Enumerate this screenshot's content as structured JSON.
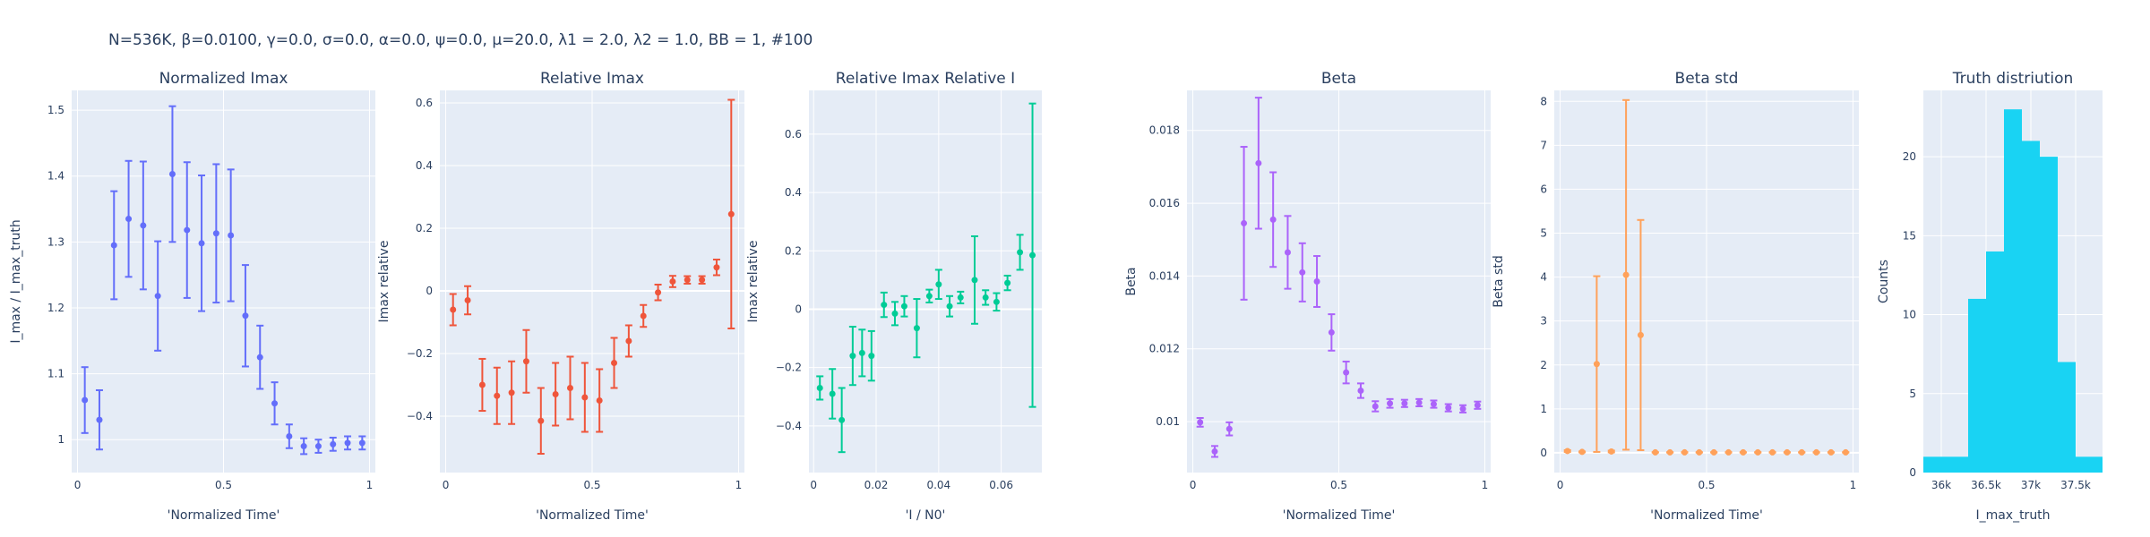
{
  "figure_title": "N=536K, β=0.0100, γ=0.0, σ=0.0,  α=0.0, ψ=0.0, μ=20.0, λ1 = 2.0, λ2 = 1.0, BB = 1, #100",
  "chart_data": [
    {
      "type": "scatter",
      "title": "Normalized Imax",
      "xlabel": "'Normalized Time'",
      "ylabel": "I_max / I_max_truth",
      "color": "#636efa",
      "xlim": [
        -0.02,
        1.02
      ],
      "ylim": [
        0.95,
        1.53
      ],
      "xticks": [
        {
          "v": 0,
          "label": "0"
        },
        {
          "v": 0.5,
          "label": "0.5"
        },
        {
          "v": 1,
          "label": "1"
        }
      ],
      "yticks": [
        {
          "v": 1.0,
          "label": "1"
        },
        {
          "v": 1.1,
          "label": "1.1"
        },
        {
          "v": 1.2,
          "label": "1.2"
        },
        {
          "v": 1.3,
          "label": "1.3"
        },
        {
          "v": 1.4,
          "label": "1.4"
        },
        {
          "v": 1.5,
          "label": "1.5"
        }
      ],
      "x": [
        0.025,
        0.075,
        0.125,
        0.175,
        0.225,
        0.275,
        0.325,
        0.375,
        0.425,
        0.475,
        0.525,
        0.575,
        0.625,
        0.675,
        0.725,
        0.775,
        0.825,
        0.875,
        0.925,
        0.975
      ],
      "y": [
        1.06,
        1.03,
        1.295,
        1.335,
        1.325,
        1.218,
        1.403,
        1.318,
        1.298,
        1.313,
        1.31,
        1.188,
        1.125,
        1.055,
        1.005,
        0.99,
        0.99,
        0.993,
        0.995,
        0.995
      ],
      "err": [
        0.05,
        0.045,
        0.082,
        0.088,
        0.097,
        0.083,
        0.103,
        0.103,
        0.103,
        0.105,
        0.1,
        0.077,
        0.048,
        0.032,
        0.018,
        0.012,
        0.01,
        0.01,
        0.01,
        0.01
      ]
    },
    {
      "type": "scatter",
      "title": "Relative Imax",
      "xlabel": "'Normalized Time'",
      "ylabel": "Imax relative",
      "color": "#ef553b",
      "xlim": [
        -0.02,
        1.02
      ],
      "ylim": [
        -0.58,
        0.64
      ],
      "xticks": [
        {
          "v": 0,
          "label": "0"
        },
        {
          "v": 0.5,
          "label": "0.5"
        },
        {
          "v": 1,
          "label": "1"
        }
      ],
      "yticks": [
        {
          "v": -0.4,
          "label": "−0.4"
        },
        {
          "v": -0.2,
          "label": "−0.2"
        },
        {
          "v": 0,
          "label": "0"
        },
        {
          "v": 0.2,
          "label": "0.2"
        },
        {
          "v": 0.4,
          "label": "0.4"
        },
        {
          "v": 0.6,
          "label": "0.6"
        }
      ],
      "zeroline": true,
      "x": [
        0.025,
        0.075,
        0.125,
        0.175,
        0.225,
        0.275,
        0.325,
        0.375,
        0.425,
        0.475,
        0.525,
        0.575,
        0.625,
        0.675,
        0.725,
        0.775,
        0.825,
        0.875,
        0.925,
        0.975
      ],
      "y": [
        -0.06,
        -0.03,
        -0.3,
        -0.335,
        -0.325,
        -0.225,
        -0.415,
        -0.33,
        -0.31,
        -0.34,
        -0.35,
        -0.23,
        -0.16,
        -0.08,
        -0.005,
        0.03,
        0.035,
        0.035,
        0.075,
        0.245
      ],
      "err": [
        0.05,
        0.045,
        0.083,
        0.09,
        0.1,
        0.1,
        0.105,
        0.1,
        0.1,
        0.11,
        0.1,
        0.08,
        0.05,
        0.035,
        0.025,
        0.018,
        0.012,
        0.012,
        0.025,
        0.365
      ]
    },
    {
      "type": "scatter",
      "title": "Relative Imax Relative I",
      "xlabel": "'I / N0'",
      "ylabel": "Imax relative",
      "color": "#00cc96",
      "xlim": [
        -0.0015,
        0.073
      ],
      "ylim": [
        -0.56,
        0.75
      ],
      "xticks": [
        {
          "v": 0,
          "label": "0"
        },
        {
          "v": 0.02,
          "label": "0.02"
        },
        {
          "v": 0.04,
          "label": "0.04"
        },
        {
          "v": 0.06,
          "label": "0.06"
        }
      ],
      "yticks": [
        {
          "v": -0.4,
          "label": "−0.4"
        },
        {
          "v": -0.2,
          "label": "−0.2"
        },
        {
          "v": 0,
          "label": "0"
        },
        {
          "v": 0.2,
          "label": "0.2"
        },
        {
          "v": 0.4,
          "label": "0.4"
        },
        {
          "v": 0.6,
          "label": "0.6"
        }
      ],
      "zeroline": true,
      "x": [
        0.002,
        0.006,
        0.009,
        0.0125,
        0.0155,
        0.0185,
        0.0225,
        0.026,
        0.029,
        0.033,
        0.037,
        0.04,
        0.0435,
        0.047,
        0.0515,
        0.055,
        0.0585,
        0.062,
        0.066,
        0.07
      ],
      "y": [
        -0.27,
        -0.29,
        -0.38,
        -0.16,
        -0.15,
        -0.16,
        0.015,
        -0.015,
        0.01,
        -0.065,
        0.045,
        0.085,
        0.01,
        0.04,
        0.1,
        0.04,
        0.025,
        0.09,
        0.195,
        0.185
      ],
      "err": [
        0.04,
        0.085,
        0.11,
        0.1,
        0.08,
        0.085,
        0.042,
        0.04,
        0.035,
        0.1,
        0.022,
        0.05,
        0.035,
        0.02,
        0.15,
        0.025,
        0.03,
        0.025,
        0.06,
        0.52
      ]
    },
    {
      "type": "scatter",
      "title": "Beta",
      "xlabel": "'Normalized Time'",
      "ylabel": "Beta",
      "color": "#ab63fa",
      "xlim": [
        -0.02,
        1.02
      ],
      "ylim": [
        0.0086,
        0.0191
      ],
      "xticks": [
        {
          "v": 0,
          "label": "0"
        },
        {
          "v": 0.5,
          "label": "0.5"
        },
        {
          "v": 1,
          "label": "1"
        }
      ],
      "yticks": [
        {
          "v": 0.01,
          "label": "0.01"
        },
        {
          "v": 0.012,
          "label": "0.012"
        },
        {
          "v": 0.014,
          "label": "0.014"
        },
        {
          "v": 0.016,
          "label": "0.016"
        },
        {
          "v": 0.018,
          "label": "0.018"
        }
      ],
      "x": [
        0.025,
        0.075,
        0.125,
        0.175,
        0.225,
        0.275,
        0.325,
        0.375,
        0.425,
        0.475,
        0.525,
        0.575,
        0.625,
        0.675,
        0.725,
        0.775,
        0.825,
        0.875,
        0.925,
        0.975
      ],
      "y": [
        0.00998,
        0.00918,
        0.0098,
        0.01545,
        0.0171,
        0.01555,
        0.01465,
        0.0141,
        0.01385,
        0.01245,
        0.01135,
        0.01085,
        0.01042,
        0.0105,
        0.0105,
        0.01052,
        0.01048,
        0.01038,
        0.01035,
        0.01045
      ],
      "err": [
        0.00012,
        0.00015,
        0.00018,
        0.0021,
        0.0018,
        0.0013,
        0.001,
        0.0008,
        0.0007,
        0.0005,
        0.0003,
        0.0002,
        0.00014,
        0.00012,
        0.0001,
        0.0001,
        0.0001,
        0.0001,
        0.0001,
        0.0001
      ]
    },
    {
      "type": "scatter",
      "title": "Beta std",
      "xlabel": "'Normalized Time'",
      "ylabel": "Beta std",
      "color": "#ffa15a",
      "xlim": [
        -0.02,
        1.02
      ],
      "ylim": [
        -0.45,
        8.25
      ],
      "xticks": [
        {
          "v": 0,
          "label": "0"
        },
        {
          "v": 0.5,
          "label": "0.5"
        },
        {
          "v": 1,
          "label": "1"
        }
      ],
      "yticks": [
        {
          "v": 0,
          "label": "0"
        },
        {
          "v": 1,
          "label": "1"
        },
        {
          "v": 2,
          "label": "2"
        },
        {
          "v": 3,
          "label": "3"
        },
        {
          "v": 4,
          "label": "4"
        },
        {
          "v": 5,
          "label": "5"
        },
        {
          "v": 6,
          "label": "6"
        },
        {
          "v": 7,
          "label": "7"
        },
        {
          "v": 8,
          "label": "8"
        }
      ],
      "zeroline": true,
      "x": [
        0.025,
        0.075,
        0.125,
        0.175,
        0.225,
        0.275,
        0.325,
        0.375,
        0.425,
        0.475,
        0.525,
        0.575,
        0.625,
        0.675,
        0.725,
        0.775,
        0.825,
        0.875,
        0.925,
        0.975
      ],
      "y": [
        0.04,
        0.02,
        2.02,
        0.03,
        4.05,
        2.68,
        0.01,
        0.01,
        0.01,
        0.01,
        0.01,
        0.01,
        0.01,
        0.01,
        0.01,
        0.01,
        0.01,
        0.01,
        0.01,
        0.01
      ],
      "err": [
        0.02,
        0.01,
        2.0,
        0.02,
        3.98,
        2.62,
        0.005,
        0.005,
        0.005,
        0.005,
        0.005,
        0.005,
        0.005,
        0.005,
        0.005,
        0.005,
        0.005,
        0.005,
        0.005,
        0.005
      ]
    },
    {
      "type": "bar",
      "title": "Truth distriution",
      "xlabel": "I_max_truth",
      "ylabel": "Counts",
      "color": "#19d3f3",
      "xlim": [
        35800,
        37800
      ],
      "ylim": [
        0,
        24.2
      ],
      "xticks": [
        {
          "v": 36000,
          "label": "36k"
        },
        {
          "v": 36500,
          "label": "36.5k"
        },
        {
          "v": 37000,
          "label": "37k"
        },
        {
          "v": 37500,
          "label": "37.5k"
        }
      ],
      "yticks": [
        {
          "v": 0,
          "label": "0"
        },
        {
          "v": 5,
          "label": "5"
        },
        {
          "v": 10,
          "label": "10"
        },
        {
          "v": 15,
          "label": "15"
        },
        {
          "v": 20,
          "label": "20"
        }
      ],
      "bins": [
        [
          35800,
          36150
        ],
        [
          36150,
          36300
        ],
        [
          36300,
          36500
        ],
        [
          36500,
          36700
        ],
        [
          36700,
          36900
        ],
        [
          36900,
          37100
        ],
        [
          37100,
          37300
        ],
        [
          37300,
          37500
        ],
        [
          37500,
          37800
        ]
      ],
      "counts": [
        1,
        1,
        11,
        14,
        23,
        21,
        20,
        7,
        1
      ]
    }
  ]
}
